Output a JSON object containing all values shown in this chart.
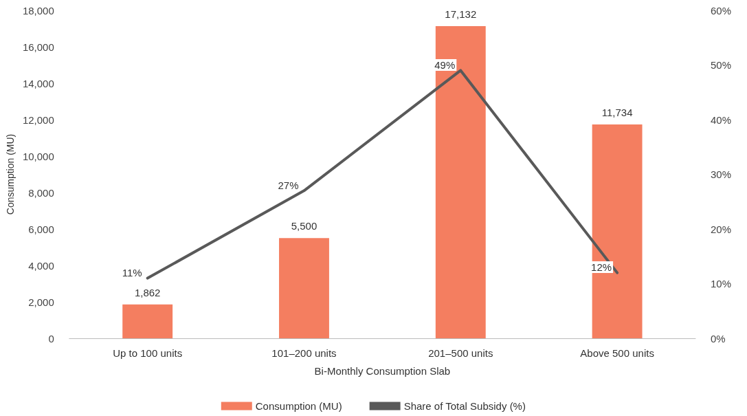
{
  "chart_data": {
    "type": "bar",
    "xlabel": "Bi-Monthly Consumption Slab",
    "ylabel": "Consumption (MU)",
    "categories": [
      "Up to 100 units",
      "101–200 units",
      "201–500 units",
      "Above 500 units"
    ],
    "series": [
      {
        "name": "Consumption (MU)",
        "type": "bar",
        "color": "#f47e60",
        "values": [
          1862,
          5500,
          17132,
          11734
        ],
        "value_labels": [
          "1,862",
          "5,500",
          "17,132",
          "11,734"
        ]
      },
      {
        "name": "Share of Total Subsidy (%)",
        "type": "line",
        "axis": "y2",
        "color": "#595959",
        "values": [
          11,
          27,
          49,
          12
        ],
        "value_labels": [
          "11%",
          "27%",
          "49%",
          "12%"
        ]
      }
    ],
    "ylim": [
      0,
      18000
    ],
    "yticks": [
      0,
      {
        "value": 2000,
        "label": "2,000"
      },
      {
        "value": 4000,
        "label": "4,000"
      },
      {
        "value": 6000,
        "label": "6,000"
      },
      {
        "value": 8000,
        "label": "8,000"
      },
      {
        "value": 10000,
        "label": "10,000"
      },
      {
        "value": 12000,
        "label": "12,000"
      },
      {
        "value": 14000,
        "label": "14,000"
      },
      {
        "value": 16000,
        "label": "16,000"
      },
      {
        "value": 18000,
        "label": "18,000"
      }
    ],
    "y2lim": [
      0,
      60
    ],
    "y2ticks": [
      {
        "value": 0,
        "label": "0%"
      },
      {
        "value": 10,
        "label": "10%"
      },
      {
        "value": 20,
        "label": "20%"
      },
      {
        "value": 30,
        "label": "30%"
      },
      {
        "value": 40,
        "label": "40%"
      },
      {
        "value": 50,
        "label": "50%"
      },
      {
        "value": 60,
        "label": "60%"
      }
    ],
    "grid": false,
    "legend": "bottom",
    "marker": "none",
    "line_style": "solid"
  }
}
